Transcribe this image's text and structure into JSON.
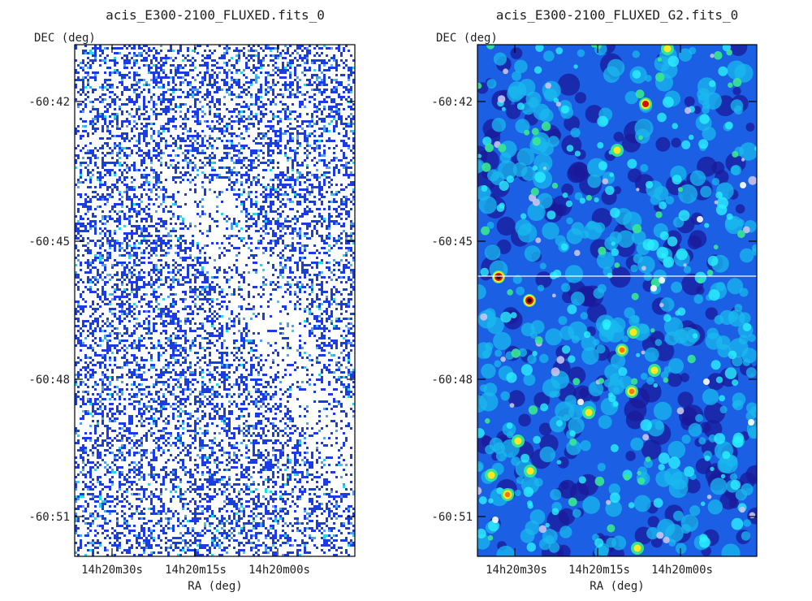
{
  "chart_data": [
    {
      "type": "heatmap",
      "title": "acis_E300-2100_FLUXED.fits_0",
      "xlabel": "RA (deg)",
      "ylabel": "DEC (deg)",
      "x_ticks": [
        "14h20m30s",
        "14h20m15s",
        "14h20m00s"
      ],
      "y_ticks": [
        "-60:42",
        "-60:45",
        "-60:48",
        "-60:51"
      ],
      "colormap": [
        "#ffffff",
        "#1a3ce0",
        "#4fa0f0",
        "#25d8e8"
      ],
      "style": "sparse binned counts image"
    },
    {
      "type": "heatmap",
      "title": "acis_E300-2100_FLUXED_G2.fits_0",
      "xlabel": "RA (deg)",
      "ylabel": "DEC (deg)",
      "x_ticks": [
        "14h20m30s",
        "14h20m15s",
        "14h20m00s"
      ],
      "y_ticks": [
        "-60:42",
        "-60:45",
        "-60:48",
        "-60:51"
      ],
      "colormap": [
        "#1a1a9a",
        "#2060e8",
        "#19b8ef",
        "#2bf0ff",
        "#38e890",
        "#ffe820",
        "#ff7010",
        "#d21010",
        "#ffffff"
      ],
      "style": "gaussian-smoothed image"
    }
  ]
}
